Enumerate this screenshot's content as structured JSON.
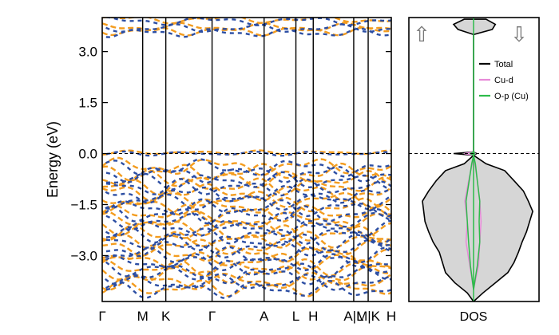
{
  "chart_data": [
    {
      "type": "line",
      "title": "",
      "xlabel": "",
      "ylabel": "Energy (eV)",
      "ylim": [
        -4.35,
        4.0
      ],
      "yticks": [
        3.0,
        1.5,
        0.0,
        -1.5,
        -3.0
      ],
      "ytick_labels": [
        "3.0",
        "1.5",
        "0.0",
        "−1.5",
        "−3.0"
      ],
      "kpath_positions": [
        0.0,
        0.14,
        0.22,
        0.38,
        0.56,
        0.67,
        0.73,
        0.87,
        0.92,
        1.0
      ],
      "kpath_labels": [
        "Γ",
        "M",
        "K",
        "Γ",
        "A",
        "L",
        "H",
        "A|L",
        "M|K",
        "H"
      ],
      "grid": false,
      "fermi_level": 0.0,
      "series": [
        {
          "name": "",
          "color": "#f39c1f",
          "style": "dashed",
          "band_levels": [
            3.95,
            3.72,
            3.6,
            0.03,
            -0.38,
            -0.55,
            -0.75,
            -0.95,
            -1.15,
            -1.35,
            -1.55,
            -1.75,
            -1.95,
            -2.15,
            -2.35,
            -2.55,
            -2.75,
            -2.95,
            -3.15,
            -3.35,
            -3.55,
            -3.75,
            -3.95
          ]
        },
        {
          "name": "",
          "color": "#2c4ea3",
          "style": "dashed",
          "band_levels": [
            3.9,
            3.68,
            3.55,
            0.0,
            -0.42,
            -0.6,
            -0.8,
            -1.0,
            -1.2,
            -1.4,
            -1.6,
            -1.8,
            -2.0,
            -2.2,
            -2.4,
            -2.6,
            -2.8,
            -3.0,
            -3.2,
            -3.4,
            -3.6,
            -3.8,
            -4.0
          ]
        }
      ]
    },
    {
      "type": "area",
      "xlabel": "DOS",
      "ylabel": "",
      "ylim": [
        -4.35,
        4.0
      ],
      "spin_markers": [
        "⇧",
        "⇩"
      ],
      "legend_position": "top-right",
      "legend": [
        {
          "name": "Total",
          "color": "#000000"
        },
        {
          "name": "Cu-d",
          "color": "#e78ad8"
        },
        {
          "name": "O-p (Cu)",
          "color": "#2dbb4a"
        }
      ],
      "series": [
        {
          "name": "Total",
          "color": "#000000",
          "fill": "#d6d6d6",
          "energies": [
            -4.35,
            -4.1,
            -3.8,
            -3.5,
            -3.2,
            -2.9,
            -2.6,
            -2.3,
            -2.0,
            -1.7,
            -1.4,
            -1.1,
            -0.8,
            -0.5,
            -0.3,
            -0.05,
            0.0,
            0.05,
            3.5,
            3.65,
            3.8,
            3.95
          ],
          "up": [
            0.0,
            0.1,
            0.3,
            0.45,
            0.5,
            0.55,
            0.65,
            0.72,
            0.78,
            0.8,
            0.82,
            0.72,
            0.6,
            0.45,
            0.15,
            0.0,
            0.32,
            0.0,
            0.0,
            0.25,
            0.32,
            0.15
          ],
          "down": [
            0.0,
            0.15,
            0.35,
            0.55,
            0.65,
            0.72,
            0.78,
            0.85,
            0.9,
            0.95,
            0.88,
            0.8,
            0.65,
            0.5,
            0.2,
            0.0,
            0.05,
            0.0,
            0.0,
            0.3,
            0.35,
            0.2
          ]
        },
        {
          "name": "Cu-d",
          "color": "#e78ad8",
          "fill": "none",
          "energies": [
            -4.0,
            -3.3,
            -2.6,
            -2.0,
            -1.4,
            -0.8,
            -0.3,
            -0.05,
            0.0,
            0.05
          ],
          "up": [
            0.0,
            0.06,
            0.12,
            0.1,
            0.14,
            0.08,
            0.02,
            0.0,
            0.15,
            0.0
          ],
          "down": [
            0.0,
            0.08,
            0.1,
            0.12,
            0.1,
            0.06,
            0.02,
            0.0,
            0.03,
            0.0
          ]
        },
        {
          "name": "O-p (Cu)",
          "color": "#2dbb4a",
          "fill": "none",
          "energies": [
            -4.0,
            -3.3,
            -2.6,
            -2.0,
            -1.4,
            -0.8,
            -0.3,
            -0.05,
            0.0,
            0.05
          ],
          "up": [
            0.0,
            0.05,
            0.08,
            0.1,
            0.12,
            0.07,
            0.03,
            0.0,
            0.05,
            0.0
          ],
          "down": [
            0.0,
            0.06,
            0.1,
            0.09,
            0.1,
            0.06,
            0.03,
            0.0,
            0.02,
            0.0
          ]
        }
      ]
    }
  ]
}
